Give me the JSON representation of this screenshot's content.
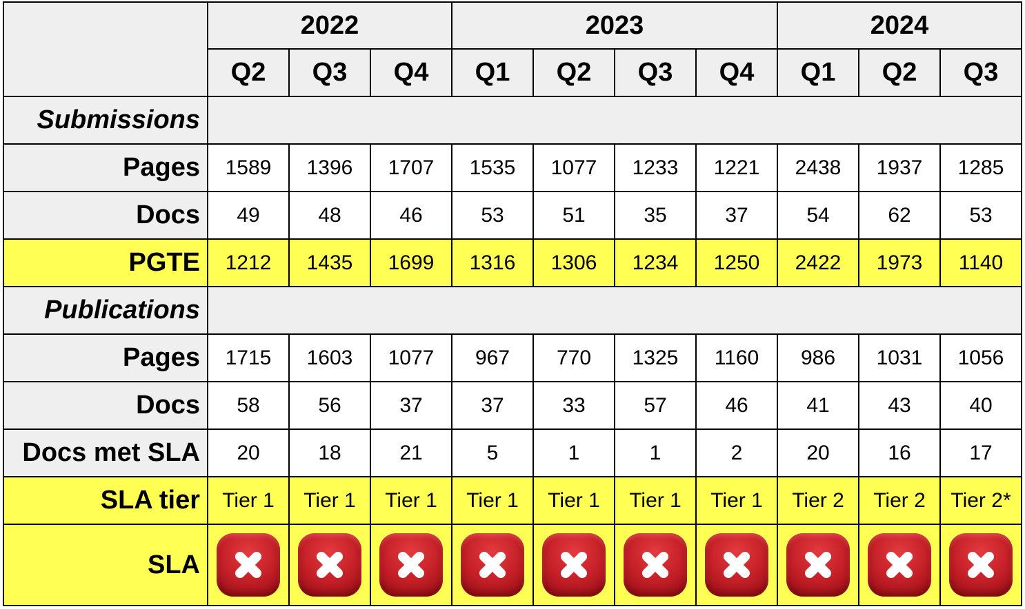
{
  "years": [
    {
      "label": "2022"
    },
    {
      "label": "2023"
    },
    {
      "label": "2024"
    }
  ],
  "quarters": [
    "Q2",
    "Q3",
    "Q4",
    "Q1",
    "Q2",
    "Q3",
    "Q4",
    "Q1",
    "Q2",
    "Q3"
  ],
  "submissions": {
    "title": "Submissions",
    "pages_label": "Pages",
    "pages": [
      "1589",
      "1396",
      "1707",
      "1535",
      "1077",
      "1233",
      "1221",
      "2438",
      "1937",
      "1285"
    ],
    "docs_label": "Docs",
    "docs": [
      "49",
      "48",
      "46",
      "53",
      "51",
      "35",
      "37",
      "54",
      "62",
      "53"
    ],
    "pgte_label": "PGTE",
    "pgte": [
      "1212",
      "1435",
      "1699",
      "1316",
      "1306",
      "1234",
      "1250",
      "2422",
      "1973",
      "1140"
    ]
  },
  "publications": {
    "title": "Publications",
    "pages_label": "Pages",
    "pages": [
      "1715",
      "1603",
      "1077",
      "967",
      "770",
      "1325",
      "1160",
      "986",
      "1031",
      "1056"
    ],
    "docs_label": "Docs",
    "docs": [
      "58",
      "56",
      "37",
      "37",
      "33",
      "57",
      "46",
      "41",
      "43",
      "40"
    ],
    "docs_met_sla_label": "Docs met SLA",
    "docs_met_sla": [
      "20",
      "18",
      "21",
      "5",
      "1",
      "1",
      "2",
      "20",
      "16",
      "17"
    ],
    "sla_tier_label": "SLA tier",
    "sla_tier": [
      "Tier 1",
      "Tier 1",
      "Tier 1",
      "Tier 1",
      "Tier 1",
      "Tier 1",
      "Tier 1",
      "Tier 2",
      "Tier 2",
      "Tier 2*"
    ],
    "sla_label": "SLA",
    "sla_status": [
      "cross-mark-icon",
      "cross-mark-icon",
      "cross-mark-icon",
      "cross-mark-icon",
      "cross-mark-icon",
      "cross-mark-icon",
      "cross-mark-icon",
      "cross-mark-icon",
      "cross-mark-icon",
      "cross-mark-icon"
    ]
  },
  "colors": {
    "header_bg": "#efefef",
    "highlight": "#ffff54",
    "sla_fail": "#c21e26"
  }
}
